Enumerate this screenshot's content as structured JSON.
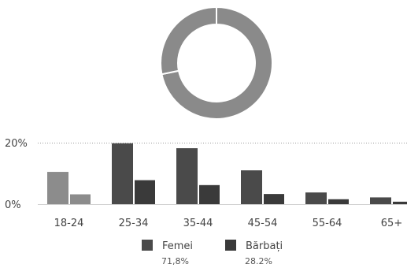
{
  "chart_data": [
    {
      "type": "pie",
      "donut": true,
      "slices": [
        {
          "name": "Femei",
          "value": 71.8
        },
        {
          "name": "Bărbați",
          "value": 28.2
        }
      ]
    },
    {
      "type": "bar",
      "categories": [
        "18-24",
        "25-34",
        "35-44",
        "45-54",
        "55-64",
        "65+"
      ],
      "series": [
        {
          "name": "Femei",
          "values": [
            10.5,
            19.8,
            18.2,
            11.0,
            3.8,
            2.2
          ]
        },
        {
          "name": "Bărbați",
          "values": [
            3.2,
            7.8,
            6.2,
            3.3,
            1.6,
            0.8
          ]
        }
      ],
      "ylim": [
        0,
        20
      ],
      "ytick_labels": [
        "0%",
        "20%"
      ],
      "legend": {
        "placement": "bottom",
        "entries": [
          {
            "name": "Femei",
            "value_label": "71,8%"
          },
          {
            "name": "Bărbați",
            "value_label": "28.2%"
          }
        ]
      }
    }
  ],
  "colors": {
    "donut_fill": "#8a8a8a",
    "donut_ring_edge": "#6a6a6a",
    "femei_bar": "#4a4a4a",
    "barbati_bar": "#3a3a3a",
    "first_pair": "#8c8c8c",
    "gridline": "#9a9a9a",
    "baseline": "#d0d0d0"
  }
}
